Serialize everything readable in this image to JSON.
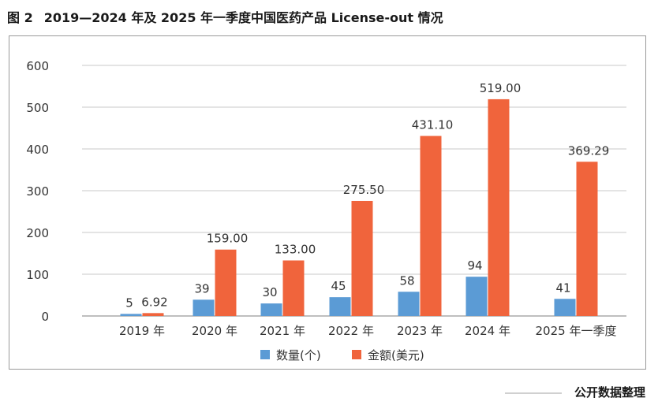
{
  "figure": {
    "number": "图 2",
    "title": "2019—2024 年及 2025 年一季度中国医药产品 License-out 情况"
  },
  "source": "公开数据整理",
  "colors": {
    "count": "#5b9bd5",
    "amount": "#f0643c",
    "grid": "#c9c9c9",
    "axis": "#7f7f7f",
    "text": "#333333"
  },
  "chart_data": {
    "type": "bar",
    "categories": [
      "2019 年",
      "2020 年",
      "2021 年",
      "2022 年",
      "2023 年",
      "2024 年",
      "2025 年一季度"
    ],
    "series": [
      {
        "name": "数量(个)",
        "values": [
          5,
          39,
          30,
          45,
          58,
          94,
          41
        ],
        "labels": [
          "5",
          "39",
          "30",
          "45",
          "58",
          "94",
          "41"
        ]
      },
      {
        "name": "金额(美元)",
        "values": [
          6.92,
          159.0,
          133.0,
          275.5,
          431.1,
          519.0,
          369.29
        ],
        "labels": [
          "6.92",
          "159.00",
          "133.00",
          "275.50",
          "431.10",
          "519.00",
          "369.29"
        ]
      }
    ],
    "ylim": [
      0,
      600
    ],
    "yticks": [
      0,
      100,
      200,
      300,
      400,
      500,
      600
    ],
    "grid": true,
    "legend": "bottom"
  }
}
